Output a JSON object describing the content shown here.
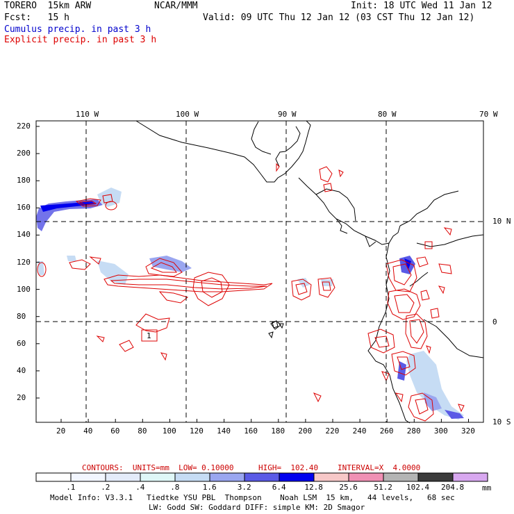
{
  "header": {
    "model": "TORERO  15km ARW",
    "org": "NCAR/MMM",
    "init": "Init: 18 UTC Wed 11 Jan 12",
    "fcst": "Fcst:   15 h",
    "valid": "Valid: 09 UTC Thu 12 Jan 12 (03 CST Thu 12 Jan 12)",
    "field1": "Cumulus precip. in past 3 h",
    "field2": "Explicit precip. in past 3 h",
    "field1_color": "#0000cc",
    "field2_color": "#dd0000"
  },
  "map": {
    "top_labels": [
      "110 W",
      "100 W",
      "90 W",
      "80 W",
      "70 W"
    ],
    "right_labels": [
      "10 N",
      "0",
      "10 S"
    ],
    "y_ticks": [
      "220",
      "200",
      "180",
      "160",
      "140",
      "120",
      "100",
      "80",
      "60",
      "40",
      "20"
    ],
    "x_ticks": [
      "20",
      "40",
      "60",
      "80",
      "100",
      "120",
      "140",
      "160",
      "180",
      "200",
      "220",
      "240",
      "260",
      "280",
      "300",
      "320"
    ],
    "contour_label": "1"
  },
  "contour_info": {
    "contours": "CONTOURS:  UNITS=mm  LOW= 0.10000",
    "high": "HIGH=  102.40",
    "interval": "INTERVAL=X  4.0000",
    "color": "#cc0000"
  },
  "colorbar": {
    "labels": [
      ".1",
      ".2",
      ".4",
      ".8",
      "1.6",
      "3.2",
      "6.4",
      "12.8",
      "25.6",
      "51.2",
      "102.4",
      "204.8"
    ],
    "units": "mm",
    "colors": [
      "#ffffff",
      "#f2f6ff",
      "#e4ecfa",
      "#dff7f7",
      "#c6dcf4",
      "#9aa6f0",
      "#5a5ae6",
      "#0000ee",
      "#f7c8c8",
      "#f090b4",
      "#b4b4b4",
      "#3c3c3c",
      "#d8a8f0"
    ]
  },
  "footer": {
    "line1": "Model Info: V3.3.1   Tiedtke YSU PBL  Thompson    Noah LSM  15 km,   44 levels,   68 sec",
    "line2": "LW: Godd SW: Goddard DIFF: simple KM: 2D Smagor"
  }
}
